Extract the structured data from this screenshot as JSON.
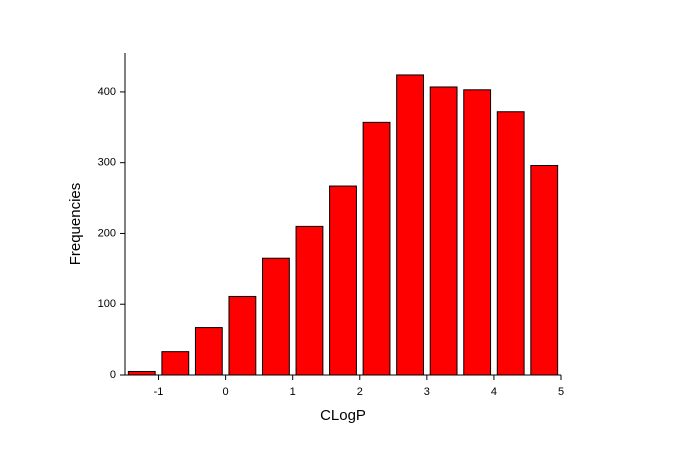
{
  "chart_data": {
    "type": "histogram",
    "x_label": "CLogP",
    "y_label": "Frequencies",
    "bins": [
      -1.5,
      -1,
      -0.5,
      0,
      0.5,
      1,
      1.5,
      2,
      2.5,
      3,
      3.5,
      4,
      4.5,
      5
    ],
    "values": [
      5,
      33,
      67,
      111,
      165,
      210,
      267,
      357,
      424,
      407,
      403,
      372,
      296
    ],
    "color": "#ff0000",
    "xlim": [
      -1.5,
      5
    ],
    "xticks": [
      -1,
      0,
      1,
      2,
      3,
      4,
      5
    ],
    "ylim": [
      0,
      455
    ],
    "yticks": [
      0,
      100,
      200,
      300,
      400
    ]
  }
}
